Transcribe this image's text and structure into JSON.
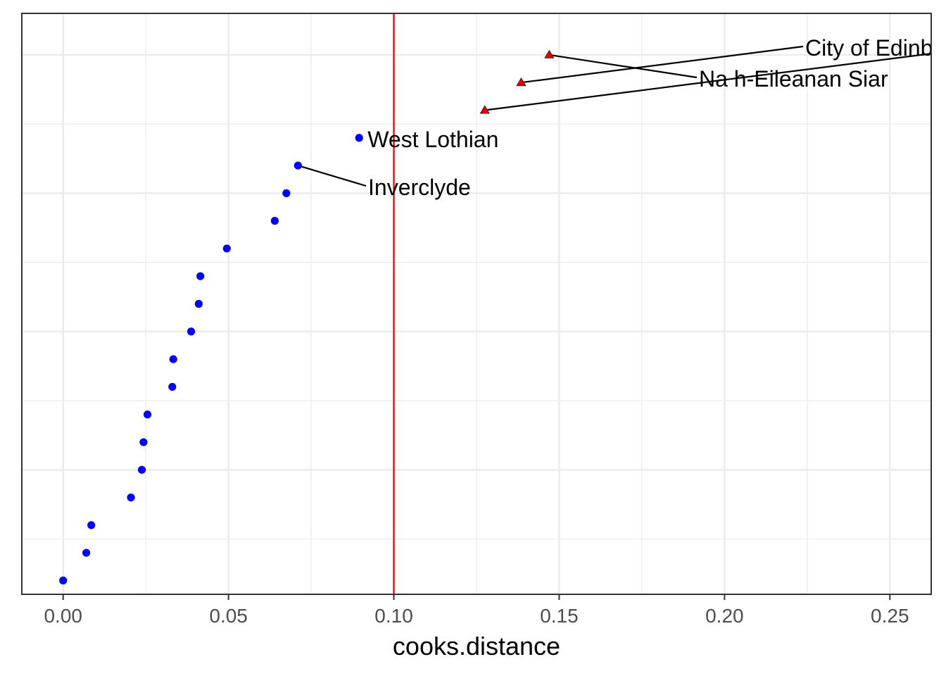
{
  "chart_data": {
    "type": "scatter",
    "xlabel": "cooks.distance",
    "ylabel": "",
    "xlim": [
      -0.0125,
      0.2625
    ],
    "ylim": [
      0.5,
      21.5
    ],
    "x_ticks": [
      0.0,
      0.05,
      0.1,
      0.15,
      0.2,
      0.25
    ],
    "x_tick_labels": [
      "0.00",
      "0.05",
      "0.10",
      "0.15",
      "0.20",
      "0.25"
    ],
    "grid": true,
    "threshold": {
      "x": 0.1,
      "color": "#e00000"
    },
    "colors": {
      "normal": "#0000ff",
      "influential": "#e00000",
      "grid": "#ebebeb"
    },
    "series": [
      {
        "marker": "circle",
        "color": "#0000ff",
        "points": [
          {
            "x": 0.0,
            "y": 1
          },
          {
            "x": 0.007,
            "y": 2
          },
          {
            "x": 0.0085,
            "y": 3
          },
          {
            "x": 0.0205,
            "y": 4
          },
          {
            "x": 0.0238,
            "y": 5
          },
          {
            "x": 0.0243,
            "y": 6
          },
          {
            "x": 0.0255,
            "y": 7
          },
          {
            "x": 0.033,
            "y": 8
          },
          {
            "x": 0.0333,
            "y": 9
          },
          {
            "x": 0.0387,
            "y": 10
          },
          {
            "x": 0.041,
            "y": 11
          },
          {
            "x": 0.0415,
            "y": 12
          },
          {
            "x": 0.0495,
            "y": 13
          },
          {
            "x": 0.064,
            "y": 14
          },
          {
            "x": 0.0675,
            "y": 15
          },
          {
            "x": 0.071,
            "y": 16
          },
          {
            "x": 0.0895,
            "y": 17
          }
        ]
      },
      {
        "marker": "triangle",
        "color": "#e00000",
        "points": [
          {
            "x": 0.1275,
            "y": 18
          },
          {
            "x": 0.1385,
            "y": 19
          },
          {
            "x": 0.147,
            "y": 20
          }
        ]
      }
    ],
    "annotations": [
      {
        "text": "West Lothian",
        "x": 0.0895,
        "y": 17,
        "leader": false
      },
      {
        "text": "Inverclyde",
        "x": 0.071,
        "y": 16,
        "leader": true
      },
      {
        "text": "City of Edinburgh",
        "x": 0.1385,
        "y": 19,
        "leader": true
      },
      {
        "text": "Na h-Eileanan Siar",
        "x": 0.147,
        "y": 20,
        "leader": true
      },
      {
        "text": "",
        "x": 0.1275,
        "y": 18,
        "leader": true
      }
    ]
  }
}
